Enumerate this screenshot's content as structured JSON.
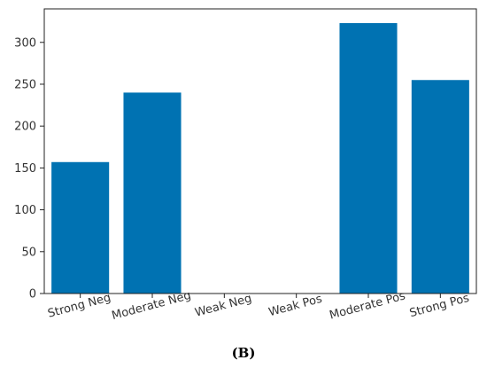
{
  "panel_label": "(B)",
  "colors": {
    "bar": "#0072b2",
    "axis": "#222222",
    "text": "#333333"
  },
  "chart_data": {
    "type": "bar",
    "categories": [
      "Strong Neg",
      "Moderate Neg",
      "Weak Neg",
      "Weak Pos",
      "Moderate Pos",
      "Strong Pos"
    ],
    "values": [
      157,
      240,
      0,
      0,
      323,
      255
    ],
    "title": "",
    "xlabel": "",
    "ylabel": "",
    "ylim": [
      0,
      340
    ],
    "yticks": [
      0,
      50,
      100,
      150,
      200,
      250,
      300
    ],
    "grid": false,
    "legend": "none"
  }
}
